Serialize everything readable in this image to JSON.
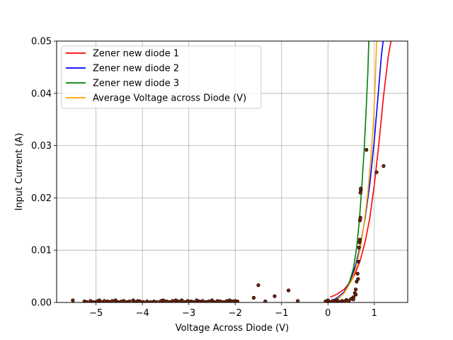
{
  "chart_data": {
    "type": "line",
    "title": "",
    "xlabel": "Voltage Across Diode (V)",
    "ylabel": "Input Current (A)",
    "xlim": [
      -5.85,
      1.72
    ],
    "ylim": [
      0,
      0.05
    ],
    "xticks": [
      -5,
      -4,
      -3,
      -2,
      -1,
      0,
      1
    ],
    "xtick_labels": [
      "−5",
      "−4",
      "−3",
      "−2",
      "−1",
      "0",
      "1"
    ],
    "yticks": [
      0,
      0.01,
      0.02,
      0.03,
      0.04,
      0.05
    ],
    "ytick_labels": [
      "0.00",
      "0.01",
      "0.02",
      "0.03",
      "0.04",
      "0.05"
    ],
    "grid": true,
    "legend_position": "top-left",
    "series": [
      {
        "name": "Zener new diode 1",
        "color": "#ff0000",
        "x": [
          0.05,
          0.2,
          0.35,
          0.5,
          0.6,
          0.7,
          0.8,
          0.9,
          1.0,
          1.1,
          1.2,
          1.3,
          1.36
        ],
        "y": [
          0.001,
          0.0016,
          0.0025,
          0.0041,
          0.0058,
          0.0082,
          0.0115,
          0.016,
          0.0225,
          0.0305,
          0.0395,
          0.047,
          0.05
        ]
      },
      {
        "name": "Zener new diode 2",
        "color": "#0000ff",
        "x": [
          0.05,
          0.2,
          0.35,
          0.5,
          0.6,
          0.7,
          0.8,
          0.9,
          1.0,
          1.08,
          1.15,
          1.19
        ],
        "y": [
          0.0002,
          0.0009,
          0.002,
          0.0045,
          0.0072,
          0.011,
          0.016,
          0.0225,
          0.031,
          0.0395,
          0.047,
          0.05
        ]
      },
      {
        "name": "Zener new diode 3",
        "color": "#008000",
        "x": [
          0.05,
          0.2,
          0.35,
          0.45,
          0.55,
          0.62,
          0.68,
          0.73,
          0.78,
          0.82,
          0.86,
          0.88
        ],
        "y": [
          0.0001,
          0.0006,
          0.0018,
          0.0035,
          0.0065,
          0.0105,
          0.016,
          0.022,
          0.029,
          0.036,
          0.044,
          0.05
        ]
      },
      {
        "name": "Average Voltage across Diode (V)",
        "color": "#ffa500",
        "x": [
          0.05,
          0.2,
          0.35,
          0.5,
          0.6,
          0.7,
          0.78,
          0.86,
          0.92,
          0.98,
          1.02,
          1.05
        ],
        "y": [
          0.0001,
          0.0007,
          0.0018,
          0.004,
          0.0065,
          0.0105,
          0.015,
          0.021,
          0.027,
          0.034,
          0.042,
          0.05
        ]
      }
    ],
    "scatter_points": {
      "fill": "#8b2500",
      "edge": "#000000",
      "points": [
        [
          -5.5,
          0.0004
        ],
        [
          -5.25,
          0.0002
        ],
        [
          -5.2,
          0.0001
        ],
        [
          -5.12,
          0.0003
        ],
        [
          -5.05,
          0.0001
        ],
        [
          -4.98,
          0.0002
        ],
        [
          -4.93,
          0.0004
        ],
        [
          -4.88,
          0.0001
        ],
        [
          -4.82,
          0.0003
        ],
        [
          -4.75,
          0.0002
        ],
        [
          -4.7,
          0.0001
        ],
        [
          -4.65,
          0.0003
        ],
        [
          -4.58,
          0.0004
        ],
        [
          -4.52,
          0.0001
        ],
        [
          -4.45,
          0.0002
        ],
        [
          -4.4,
          0.0003
        ],
        [
          -4.33,
          0.0001
        ],
        [
          -4.28,
          0.0002
        ],
        [
          -4.2,
          0.0004
        ],
        [
          -4.15,
          0.0001
        ],
        [
          -4.1,
          0.0003
        ],
        [
          -4.05,
          0.0002
        ],
        [
          -3.98,
          0.0001
        ],
        [
          -3.9,
          0.0002
        ],
        [
          -3.82,
          0.0001
        ],
        [
          -3.75,
          0.0002
        ],
        [
          -3.68,
          0.0001
        ],
        [
          -3.6,
          0.0003
        ],
        [
          -3.55,
          0.0004
        ],
        [
          -3.48,
          0.0002
        ],
        [
          -3.42,
          0.0001
        ],
        [
          -3.35,
          0.0003
        ],
        [
          -3.28,
          0.0004
        ],
        [
          -3.22,
          0.0002
        ],
        [
          -3.15,
          0.0004
        ],
        [
          -3.08,
          0.0001
        ],
        [
          -3.02,
          0.0003
        ],
        [
          -2.95,
          0.0002
        ],
        [
          -2.9,
          0.0001
        ],
        [
          -2.83,
          0.0004
        ],
        [
          -2.77,
          0.0002
        ],
        [
          -2.7,
          0.0003
        ],
        [
          -2.63,
          0.0001
        ],
        [
          -2.57,
          0.0002
        ],
        [
          -2.5,
          0.0004
        ],
        [
          -2.45,
          0.0001
        ],
        [
          -2.38,
          0.0003
        ],
        [
          -2.32,
          0.0002
        ],
        [
          -2.25,
          0.0001
        ],
        [
          -2.18,
          0.0003
        ],
        [
          -2.12,
          0.0004
        ],
        [
          -2.05,
          0.0002
        ],
        [
          -2.0,
          0.0003
        ],
        [
          -1.95,
          0.0002
        ],
        [
          -1.6,
          0.0009
        ],
        [
          -1.5,
          0.0033
        ],
        [
          -1.35,
          0.0002
        ],
        [
          -1.15,
          0.0012
        ],
        [
          -0.85,
          0.0023
        ],
        [
          -0.65,
          0.0003
        ],
        [
          -0.05,
          0.0002
        ],
        [
          0.0,
          0.0004
        ],
        [
          0.05,
          0.0001
        ],
        [
          0.1,
          0.0003
        ],
        [
          0.15,
          0.0002
        ],
        [
          0.2,
          0.0004
        ],
        [
          0.25,
          0.0001
        ],
        [
          0.3,
          0.0003
        ],
        [
          0.35,
          0.0002
        ],
        [
          0.4,
          0.0005
        ],
        [
          0.45,
          0.0003
        ],
        [
          0.5,
          0.0007
        ],
        [
          0.55,
          0.001
        ],
        [
          0.58,
          0.0018
        ],
        [
          0.6,
          0.0025
        ],
        [
          0.62,
          0.004
        ],
        [
          0.64,
          0.0055
        ],
        [
          0.66,
          0.0078
        ],
        [
          0.67,
          0.0105
        ],
        [
          0.68,
          0.0115
        ],
        [
          0.69,
          0.0157
        ],
        [
          0.7,
          0.0162
        ],
        [
          0.7,
          0.021
        ],
        [
          0.71,
          0.0215
        ],
        [
          0.71,
          0.0218
        ],
        [
          0.69,
          0.012
        ],
        [
          0.65,
          0.0045
        ],
        [
          0.6,
          0.0015
        ],
        [
          0.55,
          0.0006
        ],
        [
          0.83,
          0.0292
        ],
        [
          1.05,
          0.0249
        ],
        [
          1.2,
          0.0261
        ]
      ]
    }
  }
}
